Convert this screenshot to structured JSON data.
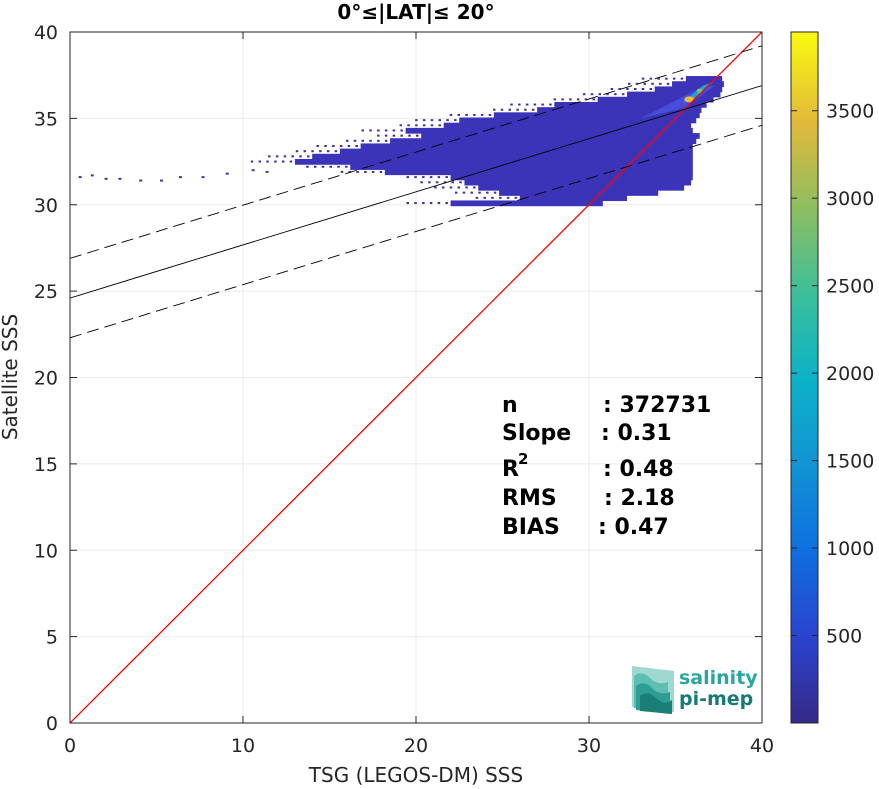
{
  "chart_data": {
    "type": "heatmap",
    "title": "0°≤|LAT|≤ 20°",
    "xlabel": "TSG (LEGOS-DM) SSS",
    "ylabel": "Satellite SSS",
    "xlim": [
      0,
      40
    ],
    "ylim": [
      0,
      40
    ],
    "xticks": [
      "0",
      "10",
      "20",
      "30",
      "40"
    ],
    "yticks": [
      "0",
      "5",
      "10",
      "15",
      "20",
      "25",
      "30",
      "35",
      "40"
    ],
    "grid": true,
    "colorbar": {
      "colormap": "parula",
      "range": [
        0,
        3950
      ],
      "ticks": [
        "500",
        "1000",
        "1500",
        "2000",
        "2500",
        "3000",
        "3500"
      ],
      "tick_values": [
        500,
        1000,
        1500,
        2000,
        2500,
        3000,
        3500
      ]
    },
    "lines": [
      {
        "name": "1:1",
        "color": "#ff0000",
        "style": "solid",
        "x": [
          0,
          40
        ],
        "y": [
          0,
          40
        ]
      },
      {
        "name": "fit",
        "color": "#000000",
        "style": "solid",
        "x": [
          0,
          40
        ],
        "y": [
          24.6,
          36.9
        ]
      },
      {
        "name": "fit+2rms",
        "color": "#000000",
        "style": "dashed",
        "x": [
          0,
          40
        ],
        "y": [
          26.9,
          39.2
        ]
      },
      {
        "name": "fit-2rms",
        "color": "#000000",
        "style": "dashed",
        "x": [
          0,
          40
        ],
        "y": [
          22.3,
          34.6
        ]
      }
    ],
    "density_cloud": {
      "rows": [
        {
          "y": 37.3,
          "x0": 35.6,
          "x1": 37.7
        },
        {
          "y": 37.0,
          "x0": 34.8,
          "x1": 37.8
        },
        {
          "y": 36.7,
          "x0": 33.8,
          "x1": 37.7
        },
        {
          "y": 36.4,
          "x0": 32.2,
          "x1": 37.6
        },
        {
          "y": 36.1,
          "x0": 30.5,
          "x1": 37.2
        },
        {
          "y": 35.8,
          "x0": 28.0,
          "x1": 36.8
        },
        {
          "y": 35.5,
          "x0": 27.0,
          "x1": 36.5
        },
        {
          "y": 35.2,
          "x0": 24.5,
          "x1": 36.4
        },
        {
          "y": 34.9,
          "x0": 22.5,
          "x1": 36.2
        },
        {
          "y": 34.6,
          "x0": 21.6,
          "x1": 35.9
        },
        {
          "y": 34.3,
          "x0": 19.4,
          "x1": 36.0
        },
        {
          "y": 34.0,
          "x0": 20.3,
          "x1": 36.4
        },
        {
          "y": 33.7,
          "x0": 18.5,
          "x1": 36.2
        },
        {
          "y": 33.4,
          "x0": 16.8,
          "x1": 36.0
        },
        {
          "y": 33.1,
          "x0": 15.6,
          "x1": 36.0
        },
        {
          "y": 32.8,
          "x0": 14.0,
          "x1": 36.0
        },
        {
          "y": 32.5,
          "x0": 13.0,
          "x1": 36.0
        },
        {
          "y": 32.2,
          "x0": 16.2,
          "x1": 36.0
        },
        {
          "y": 31.9,
          "x0": 18.2,
          "x1": 36.0
        },
        {
          "y": 31.6,
          "x0": 22.0,
          "x1": 36.0
        },
        {
          "y": 31.3,
          "x0": 22.8,
          "x1": 35.9
        },
        {
          "y": 31.0,
          "x0": 23.6,
          "x1": 35.5
        },
        {
          "y": 30.7,
          "x0": 24.8,
          "x1": 34.0
        },
        {
          "y": 30.4,
          "x0": 26.0,
          "x1": 32.2
        },
        {
          "y": 30.1,
          "x0": 22.0,
          "x1": 30.8
        }
      ],
      "sparse_points": [
        {
          "x": 0.5,
          "y": 31.6
        },
        {
          "x": 1.2,
          "y": 31.7
        },
        {
          "x": 2.0,
          "y": 31.5
        },
        {
          "x": 2.8,
          "y": 31.5
        },
        {
          "x": 4.0,
          "y": 31.4
        },
        {
          "x": 5.2,
          "y": 31.4
        },
        {
          "x": 6.3,
          "y": 31.6
        },
        {
          "x": 7.6,
          "y": 31.6
        },
        {
          "x": 9.0,
          "y": 31.8
        },
        {
          "x": 10.5,
          "y": 32.0
        },
        {
          "x": 11.3,
          "y": 31.9
        }
      ]
    }
  },
  "stats": {
    "n_label": "n",
    "n_value": ": 372731",
    "slope_label": "Slope",
    "slope_value": ": 0.31",
    "r2_label": "R",
    "r2_sup": "2",
    "r2_value": ": 0.48",
    "rms_label": "RMS",
    "rms_value": ": 2.18",
    "bias_label": "BIAS",
    "bias_value": ": 0.47"
  },
  "logo": {
    "line1": "salinity",
    "line2": "pi-mep",
    "color1": "#2aa6a0",
    "color2": "#177a75"
  }
}
